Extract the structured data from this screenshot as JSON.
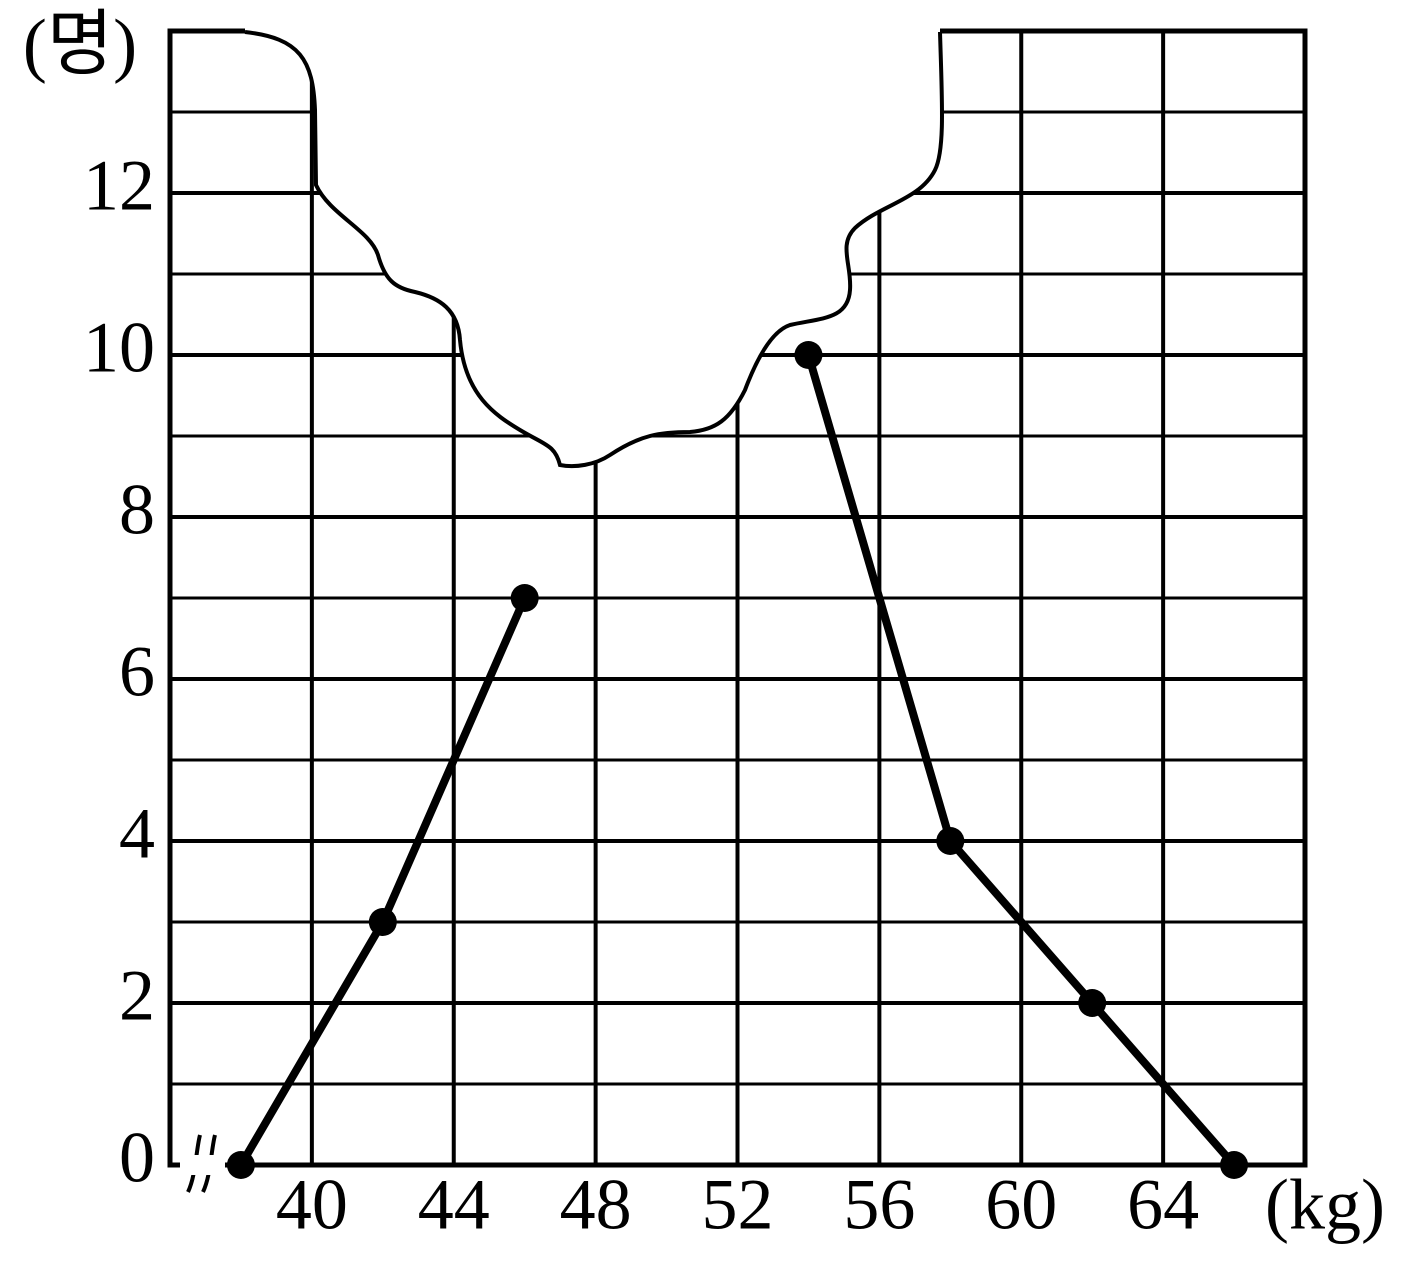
{
  "chart_data": {
    "type": "line",
    "x_label": "(kg)",
    "y_label": "(명)",
    "x": [
      38,
      42,
      46,
      50,
      54,
      58,
      62,
      66
    ],
    "series": [
      {
        "color": "#000000",
        "values": [
          0,
          3,
          7,
          null,
          10,
          4,
          2,
          0
        ]
      }
    ],
    "xlim": [
      36,
      68
    ],
    "xticks": [
      40,
      44,
      48,
      52,
      56,
      60,
      64
    ],
    "ylim": [
      0,
      14
    ],
    "yticks": [
      0,
      2,
      4,
      6,
      8,
      10,
      12
    ],
    "yminor": [
      1,
      3,
      5,
      7,
      9,
      11,
      13
    ],
    "grid": true
  }
}
